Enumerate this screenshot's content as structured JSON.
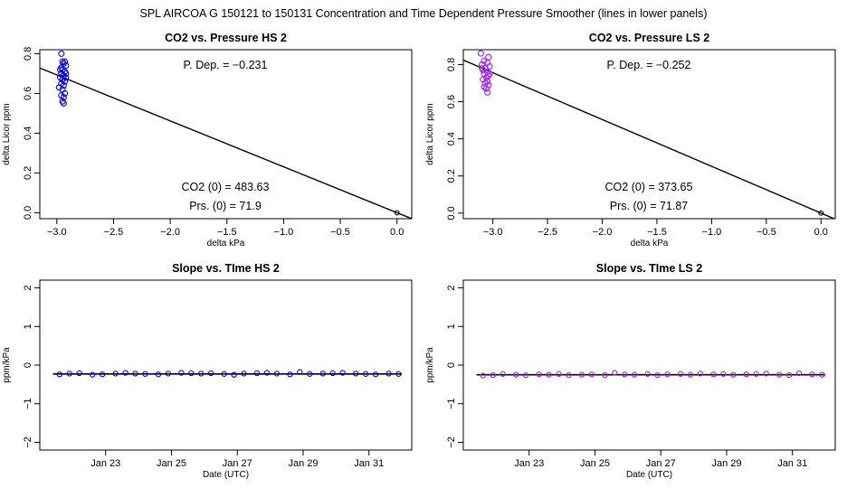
{
  "figure_title": "SPL   AIRCOA G   150121 to 150131   Concentration and Time Dependent Pressure Smoother (lines in lower panels)",
  "colors": {
    "hs": "#0000ee",
    "ls": "#a020f0",
    "axis": "#000000",
    "fit_line": "#000000"
  },
  "chart_data": [
    {
      "id": "co2-pressure-hs",
      "type": "scatter",
      "title": "CO2 vs. Pressure HS 2",
      "xlabel": "delta kPa",
      "ylabel": "delta Licor ppm",
      "xlim": [
        -3.15,
        0.13
      ],
      "ylim": [
        -0.03,
        0.82
      ],
      "xticks": [
        -3.0,
        -2.5,
        -2.0,
        -1.5,
        -1.0,
        -0.5,
        0.0
      ],
      "xtick_labels": [
        "−3.0",
        "−2.5",
        "−2.0",
        "−1.5",
        "−1.0",
        "−0.5",
        "0.0"
      ],
      "yticks": [
        0.0,
        0.2,
        0.4,
        0.6,
        0.8
      ],
      "ytick_labels": [
        "0.0",
        "0.2",
        "0.4",
        "0.6",
        "0.8"
      ],
      "color": "#0000ee",
      "points": [
        [
          -2.96,
          0.8
        ],
        [
          -2.95,
          0.76
        ],
        [
          -2.94,
          0.75
        ],
        [
          -2.93,
          0.76
        ],
        [
          -2.92,
          0.74
        ],
        [
          -2.97,
          0.72
        ],
        [
          -2.95,
          0.72
        ],
        [
          -2.93,
          0.71
        ],
        [
          -2.96,
          0.7
        ],
        [
          -2.94,
          0.69
        ],
        [
          -2.92,
          0.7
        ],
        [
          -2.97,
          0.68
        ],
        [
          -2.95,
          0.67
        ],
        [
          -2.93,
          0.66
        ],
        [
          -2.96,
          0.65
        ],
        [
          -2.94,
          0.64
        ],
        [
          -2.98,
          0.63
        ],
        [
          -2.95,
          0.62
        ],
        [
          -2.93,
          0.6
        ],
        [
          -2.96,
          0.59
        ],
        [
          -2.94,
          0.58
        ],
        [
          -2.95,
          0.56
        ],
        [
          -2.94,
          0.55
        ],
        [
          -2.96,
          0.73
        ],
        [
          -2.92,
          0.68
        ],
        [
          0.0,
          0.0
        ]
      ],
      "fit_line": {
        "x": [
          -3.15,
          0.13
        ],
        "y": [
          0.7277,
          -0.03
        ]
      },
      "annotations": {
        "p_dep": "P. Dep. =  −0.231",
        "co2_0": "CO2 (0) =  483.63",
        "prs_0": "Prs. (0) = 71.9"
      }
    },
    {
      "id": "co2-pressure-ls",
      "type": "scatter",
      "title": "CO2 vs. Pressure LS 2",
      "xlabel": "delta kPa",
      "ylabel": "delta Licor ppm",
      "xlim": [
        -3.27,
        0.13
      ],
      "ylim": [
        -0.03,
        0.88
      ],
      "xticks": [
        -3.0,
        -2.5,
        -2.0,
        -1.5,
        -1.0,
        -0.5,
        0.0
      ],
      "xtick_labels": [
        "−3.0",
        "−2.5",
        "−2.0",
        "−1.5",
        "−1.0",
        "−0.5",
        "0.0"
      ],
      "yticks": [
        0.0,
        0.2,
        0.4,
        0.6,
        0.8
      ],
      "ytick_labels": [
        "0.0",
        "0.2",
        "0.4",
        "0.6",
        "0.8"
      ],
      "color": "#a020f0",
      "points": [
        [
          -3.11,
          0.86
        ],
        [
          -3.04,
          0.84
        ],
        [
          -3.08,
          0.82
        ],
        [
          -3.05,
          0.81
        ],
        [
          -3.1,
          0.8
        ],
        [
          -3.03,
          0.79
        ],
        [
          -3.07,
          0.78
        ],
        [
          -3.09,
          0.77
        ],
        [
          -3.05,
          0.76
        ],
        [
          -3.08,
          0.75
        ],
        [
          -3.04,
          0.74
        ],
        [
          -3.06,
          0.73
        ],
        [
          -3.09,
          0.72
        ],
        [
          -3.05,
          0.71
        ],
        [
          -3.07,
          0.7
        ],
        [
          -3.04,
          0.69
        ],
        [
          -3.08,
          0.68
        ],
        [
          -3.06,
          0.67
        ],
        [
          -3.05,
          0.65
        ],
        [
          -3.1,
          0.78
        ],
        [
          -3.03,
          0.75
        ],
        [
          0.0,
          0.0
        ]
      ],
      "fit_line": {
        "x": [
          -3.27,
          0.13
        ],
        "y": [
          0.824,
          -0.0327
        ]
      },
      "annotations": {
        "p_dep": "P. Dep. =  −0.252",
        "co2_0": "CO2 (0) =  373.65",
        "prs_0": "Prs. (0) = 71.87"
      }
    },
    {
      "id": "slope-time-hs",
      "type": "line",
      "title": "Slope vs. TIme HS 2",
      "xlabel": "Date (UTC)",
      "ylabel": "ppm/kPa",
      "xlim": [
        21.0,
        32.3
      ],
      "ylim": [
        -2.2,
        2.2
      ],
      "xticks": [
        23,
        25,
        27,
        29,
        31
      ],
      "xtick_labels": [
        "Jan 23",
        "Jan 25",
        "Jan 27",
        "Jan 29",
        "Jan 31"
      ],
      "yticks": [
        -2,
        -1,
        0,
        1,
        2
      ],
      "ytick_labels": [
        "−2",
        "−1",
        "0",
        "1",
        "2"
      ],
      "color": "#0000ee",
      "x": [
        21.6,
        21.9,
        22.2,
        22.6,
        22.9,
        23.3,
        23.6,
        23.9,
        24.2,
        24.6,
        24.9,
        25.3,
        25.6,
        25.9,
        26.2,
        26.6,
        26.9,
        27.2,
        27.6,
        27.9,
        28.2,
        28.6,
        28.9,
        29.2,
        29.6,
        29.9,
        30.2,
        30.6,
        30.9,
        31.2,
        31.6,
        31.9
      ],
      "values": [
        -0.24,
        -0.22,
        -0.21,
        -0.25,
        -0.24,
        -0.22,
        -0.2,
        -0.22,
        -0.23,
        -0.24,
        -0.22,
        -0.2,
        -0.21,
        -0.22,
        -0.21,
        -0.23,
        -0.25,
        -0.22,
        -0.21,
        -0.2,
        -0.22,
        -0.24,
        -0.18,
        -0.23,
        -0.22,
        -0.21,
        -0.2,
        -0.22,
        -0.23,
        -0.24,
        -0.22,
        -0.23
      ],
      "smoother": {
        "x": [
          21.4,
          32.0
        ],
        "y": [
          -0.23,
          -0.23
        ]
      }
    },
    {
      "id": "slope-time-ls",
      "type": "line",
      "title": "Slope vs. TIme LS 2",
      "xlabel": "Date (UTC)",
      "ylabel": "ppm/kPa",
      "xlim": [
        21.0,
        32.3
      ],
      "ylim": [
        -2.2,
        2.2
      ],
      "xticks": [
        23,
        25,
        27,
        29,
        31
      ],
      "xtick_labels": [
        "Jan 23",
        "Jan 25",
        "Jan 27",
        "Jan 29",
        "Jan 31"
      ],
      "yticks": [
        -2,
        -1,
        0,
        1,
        2
      ],
      "ytick_labels": [
        "−2",
        "−1",
        "0",
        "1",
        "2"
      ],
      "color": "#a020f0",
      "x": [
        21.6,
        21.9,
        22.2,
        22.6,
        22.9,
        23.3,
        23.6,
        23.9,
        24.2,
        24.6,
        24.9,
        25.3,
        25.6,
        25.9,
        26.2,
        26.6,
        26.9,
        27.2,
        27.6,
        27.9,
        28.2,
        28.6,
        28.9,
        29.2,
        29.6,
        29.9,
        30.2,
        30.6,
        30.9,
        31.2,
        31.6,
        31.9
      ],
      "values": [
        -0.27,
        -0.26,
        -0.23,
        -0.25,
        -0.26,
        -0.24,
        -0.25,
        -0.23,
        -0.26,
        -0.25,
        -0.24,
        -0.26,
        -0.2,
        -0.24,
        -0.25,
        -0.23,
        -0.26,
        -0.24,
        -0.23,
        -0.25,
        -0.22,
        -0.24,
        -0.23,
        -0.25,
        -0.24,
        -0.23,
        -0.22,
        -0.25,
        -0.26,
        -0.21,
        -0.24,
        -0.25
      ],
      "smoother": {
        "x": [
          21.4,
          32.0
        ],
        "y": [
          -0.25,
          -0.25
        ]
      }
    }
  ]
}
